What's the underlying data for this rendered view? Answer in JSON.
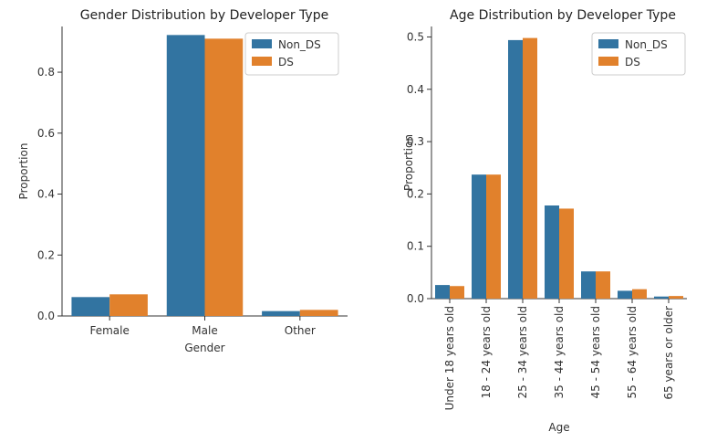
{
  "colors": {
    "non_ds": "#3274a1",
    "ds": "#e1812c"
  },
  "chart_data": [
    {
      "type": "bar",
      "title": "Gender Distribution by Developer Type",
      "xlabel": "Gender",
      "ylabel": "Proportion",
      "categories": [
        "Female",
        "Male",
        "Other"
      ],
      "series": [
        {
          "name": "Non_DS",
          "values": [
            0.062,
            0.922,
            0.016
          ]
        },
        {
          "name": "DS",
          "values": [
            0.071,
            0.91,
            0.02
          ]
        }
      ],
      "ylim": [
        0,
        0.95
      ],
      "yticks": [
        "0.0",
        "0.2",
        "0.4",
        "0.6",
        "0.8"
      ],
      "legend": "top-right",
      "grid": false
    },
    {
      "type": "bar",
      "title": "Age Distribution by Developer Type",
      "xlabel": "Age",
      "ylabel": "Proportion",
      "categories": [
        "Under 18 years old",
        "18 - 24 years old",
        "25 - 34 years old",
        "35 - 44 years old",
        "45 - 54 years old",
        "55 - 64 years old",
        "65 years or older"
      ],
      "series": [
        {
          "name": "Non_DS",
          "values": [
            0.026,
            0.237,
            0.494,
            0.178,
            0.052,
            0.015,
            0.004
          ]
        },
        {
          "name": "DS",
          "values": [
            0.024,
            0.237,
            0.498,
            0.172,
            0.052,
            0.018,
            0.005
          ]
        }
      ],
      "ylim": [
        0,
        0.52
      ],
      "yticks": [
        "0.0",
        "0.1",
        "0.2",
        "0.3",
        "0.4",
        "0.5"
      ],
      "legend": "top-right",
      "grid": false
    }
  ]
}
